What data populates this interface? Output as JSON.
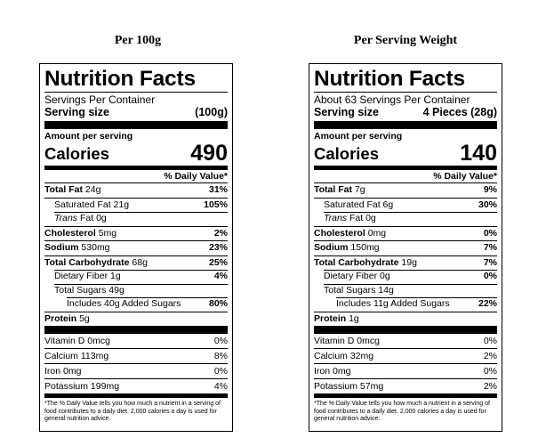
{
  "headings": {
    "left": "Per 100g",
    "right": "Per Serving Weight"
  },
  "labels": [
    {
      "title": "Nutrition Facts",
      "servings": "Servings Per Container",
      "serving_size_label": "Serving size",
      "serving_size_value": "(100g)",
      "amount_per_serving": "Amount per serving",
      "calories_label": "Calories",
      "calories_value": "490",
      "dv_header": "% Daily Value*",
      "total_fat": {
        "label": "Total Fat",
        "amount": "24g",
        "dv": "31%"
      },
      "saturated_fat": {
        "label": "Saturated Fat",
        "amount": "21g",
        "dv": "105%"
      },
      "trans_fat": {
        "label": "Trans",
        "amount": "Fat 0g"
      },
      "cholesterol": {
        "label": "Cholesterol",
        "amount": "5mg",
        "dv": "2%"
      },
      "sodium": {
        "label": "Sodium",
        "amount": "530mg",
        "dv": "23%"
      },
      "total_carb": {
        "label": "Total Carbohydrate",
        "amount": "68g",
        "dv": "25%"
      },
      "fiber": {
        "label": "Dietary Fiber",
        "amount": "1g",
        "dv": "4%"
      },
      "total_sugars": {
        "label": "Total Sugars",
        "amount": "49g"
      },
      "added_sugars": {
        "label": "Includes 40g Added Sugars",
        "dv": "80%"
      },
      "protein": {
        "label": "Protein",
        "amount": "5g"
      },
      "vitamin_d": {
        "label": "Vitamin D 0mcg",
        "dv": "0%"
      },
      "calcium": {
        "label": "Calcium 113mg",
        "dv": "8%"
      },
      "iron": {
        "label": "Iron 0mg",
        "dv": "0%"
      },
      "potassium": {
        "label": "Potassium 199mg",
        "dv": "4%"
      },
      "footnote": "*The % Daily Value tells you how much a nutrient in a serving of food contributes to a daily diet. 2,000 calories a day is used for general nutrition advice."
    },
    {
      "title": "Nutrition Facts",
      "servings": "About 63 Servings Per Container",
      "serving_size_label": "Serving size",
      "serving_size_value": "4 Pieces (28g)",
      "amount_per_serving": "Amount per serving",
      "calories_label": "Calories",
      "calories_value": "140",
      "dv_header": "% Daily Value*",
      "total_fat": {
        "label": "Total Fat",
        "amount": "7g",
        "dv": "9%"
      },
      "saturated_fat": {
        "label": "Saturated Fat",
        "amount": "6g",
        "dv": "30%"
      },
      "trans_fat": {
        "label": "Trans",
        "amount": "Fat 0g"
      },
      "cholesterol": {
        "label": "Cholesterol",
        "amount": "0mg",
        "dv": "0%"
      },
      "sodium": {
        "label": "Sodium",
        "amount": "150mg",
        "dv": "7%"
      },
      "total_carb": {
        "label": "Total Carbohydrate",
        "amount": "19g",
        "dv": "7%"
      },
      "fiber": {
        "label": "Dietary Fiber",
        "amount": "0g",
        "dv": "0%"
      },
      "total_sugars": {
        "label": "Total Sugars",
        "amount": "14g"
      },
      "added_sugars": {
        "label": "Includes 11g Added Sugars",
        "dv": "22%"
      },
      "protein": {
        "label": "Protein",
        "amount": "1g"
      },
      "vitamin_d": {
        "label": "Vitamin D 0mcg",
        "dv": "0%"
      },
      "calcium": {
        "label": "Calcium 32mg",
        "dv": "2%"
      },
      "iron": {
        "label": "Iron 0mg",
        "dv": "0%"
      },
      "potassium": {
        "label": "Potassium 57mg",
        "dv": "2%"
      },
      "footnote": "*The % Daily Value tells you how much a nutrient in a serving of food contributes to a daily diet. 2,000 calories a day is used for general nutrition advice."
    }
  ]
}
